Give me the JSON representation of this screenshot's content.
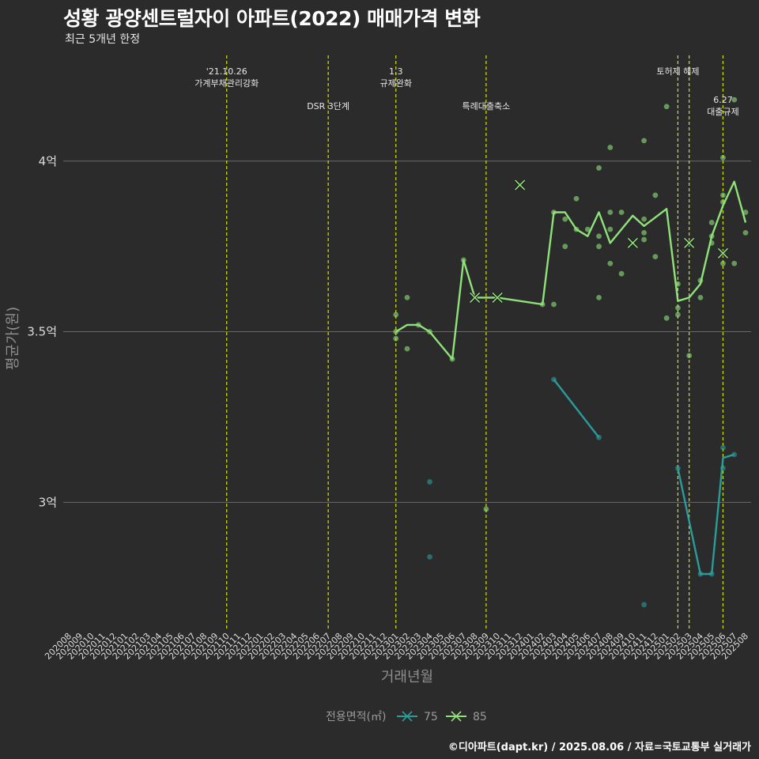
{
  "title": "성황 광양센트럴자이 아파트(2022) 매매가격 변화",
  "subtitle": "최근 5개년 한정",
  "caption": "©디아파트(dapt.kr) / 2025.08.06 / 자료=국토교통부 실거래가",
  "legend": {
    "title": "전용면적(㎡)",
    "items": [
      {
        "label": "75",
        "color": "#2a9d9a"
      },
      {
        "label": "85",
        "color": "#8fe27a"
      }
    ]
  },
  "chart_data": {
    "type": "line",
    "xlabel": "거래년월",
    "ylabel": "평균가(원)",
    "ylim": [
      2.63,
      4.31
    ],
    "yticks": [
      {
        "value": 3.0,
        "label": "3억"
      },
      {
        "value": 3.5,
        "label": "3.5억"
      },
      {
        "value": 4.0,
        "label": "4억"
      }
    ],
    "grid": true,
    "legend_position": "bottom",
    "categories": [
      "202008",
      "202009",
      "202010",
      "202011",
      "202012",
      "202101",
      "202102",
      "202103",
      "202104",
      "202105",
      "202106",
      "202107",
      "202108",
      "202109",
      "202110",
      "202111",
      "202112",
      "202201",
      "202202",
      "202203",
      "202204",
      "202205",
      "202206",
      "202207",
      "202208",
      "202209",
      "202210",
      "202211",
      "202212",
      "202301",
      "202302",
      "202303",
      "202304",
      "202305",
      "202306",
      "202307",
      "202308",
      "202309",
      "202310",
      "202311",
      "202312",
      "202401",
      "202402",
      "202403",
      "202404",
      "202405",
      "202406",
      "202407",
      "202408",
      "202409",
      "202410",
      "202411",
      "202412",
      "202501",
      "202502",
      "202503",
      "202504",
      "202505",
      "202506",
      "202507",
      "202508"
    ],
    "events": [
      {
        "x": "202110",
        "label": "'21.10.26\n가계부채관리강화",
        "row": 0
      },
      {
        "x": "202207",
        "label": "DSR 3단계",
        "row": 1
      },
      {
        "x": "202301",
        "label": "1.3\n규제완화",
        "row": 0
      },
      {
        "x": "202309",
        "label": "특례대출축소",
        "row": 1
      },
      {
        "x": "202502",
        "label": "토허제 해제",
        "row": 0
      },
      {
        "x": "202503",
        "label": "",
        "row": 0
      },
      {
        "x": "202506",
        "label": "6.27\n대출규제",
        "row": 1
      }
    ],
    "series": [
      {
        "name": "75",
        "color": "#2a9d9a",
        "line": [
          [
            "202403",
            3.36
          ],
          [
            "202407",
            3.19
          ],
          null,
          [
            "202502",
            3.1
          ],
          [
            "202504",
            2.79
          ],
          [
            "202505",
            2.79
          ],
          [
            "202506",
            3.13
          ],
          [
            "202507",
            3.14
          ]
        ],
        "points": [
          [
            "202304",
            3.06
          ],
          [
            "202304",
            2.84
          ],
          [
            "202403",
            3.36
          ],
          [
            "202407",
            3.19
          ],
          [
            "202411",
            2.7
          ],
          [
            "202502",
            3.1
          ],
          [
            "202504",
            2.79
          ],
          [
            "202505",
            2.79
          ],
          [
            "202506",
            3.16
          ],
          [
            "202506",
            3.1
          ],
          [
            "202507",
            3.14
          ]
        ],
        "crosses": []
      },
      {
        "name": "85",
        "color": "#8fe27a",
        "line": [
          [
            "202301",
            3.5
          ],
          [
            "202302",
            3.52
          ],
          [
            "202303",
            3.52
          ],
          [
            "202304",
            3.5
          ],
          [
            "202306",
            3.42
          ],
          [
            "202307",
            3.71
          ],
          [
            "202308",
            3.6
          ],
          [
            "202310",
            3.6
          ],
          [
            "202402",
            3.58
          ],
          [
            "202403",
            3.85
          ],
          [
            "202404",
            3.85
          ],
          [
            "202405",
            3.8
          ],
          [
            "202406",
            3.78
          ],
          [
            "202407",
            3.85
          ],
          [
            "202408",
            3.76
          ],
          [
            "202410",
            3.84
          ],
          [
            "202411",
            3.81
          ],
          [
            "202501",
            3.86
          ],
          [
            "202502",
            3.59
          ],
          [
            "202503",
            3.6
          ],
          [
            "202504",
            3.64
          ],
          [
            "202505",
            3.78
          ],
          [
            "202506",
            3.87
          ],
          [
            "202507",
            3.94
          ],
          [
            "202508",
            3.82
          ]
        ],
        "points": [
          [
            "202301",
            3.55
          ],
          [
            "202301",
            3.5
          ],
          [
            "202301",
            3.48
          ],
          [
            "202302",
            3.6
          ],
          [
            "202302",
            3.45
          ],
          [
            "202303",
            3.52
          ],
          [
            "202304",
            3.5
          ],
          [
            "202306",
            3.42
          ],
          [
            "202307",
            3.71
          ],
          [
            "202309",
            2.98
          ],
          [
            "202402",
            3.58
          ],
          [
            "202403",
            3.85
          ],
          [
            "202403",
            3.58
          ],
          [
            "202404",
            3.83
          ],
          [
            "202404",
            3.75
          ],
          [
            "202405",
            3.89
          ],
          [
            "202405",
            3.8
          ],
          [
            "202406",
            3.8
          ],
          [
            "202407",
            3.98
          ],
          [
            "202407",
            3.78
          ],
          [
            "202407",
            3.75
          ],
          [
            "202407",
            3.6
          ],
          [
            "202408",
            4.04
          ],
          [
            "202408",
            3.85
          ],
          [
            "202408",
            3.8
          ],
          [
            "202408",
            3.7
          ],
          [
            "202409",
            3.85
          ],
          [
            "202409",
            3.67
          ],
          [
            "202411",
            4.06
          ],
          [
            "202411",
            3.83
          ],
          [
            "202411",
            3.79
          ],
          [
            "202411",
            3.77
          ],
          [
            "202412",
            3.9
          ],
          [
            "202412",
            3.72
          ],
          [
            "202501",
            4.16
          ],
          [
            "202501",
            3.54
          ],
          [
            "202502",
            3.64
          ],
          [
            "202502",
            3.57
          ],
          [
            "202502",
            3.55
          ],
          [
            "202503",
            3.43
          ],
          [
            "202504",
            3.65
          ],
          [
            "202504",
            3.6
          ],
          [
            "202505",
            3.82
          ],
          [
            "202505",
            3.78
          ],
          [
            "202505",
            3.76
          ],
          [
            "202506",
            4.01
          ],
          [
            "202506",
            3.9
          ],
          [
            "202506",
            3.88
          ],
          [
            "202506",
            3.73
          ],
          [
            "202506",
            3.7
          ],
          [
            "202507",
            4.18
          ],
          [
            "202507",
            3.7
          ],
          [
            "202508",
            3.85
          ],
          [
            "202508",
            3.79
          ]
        ],
        "crosses": [
          [
            "202308",
            3.6
          ],
          [
            "202310",
            3.6
          ],
          [
            "202312",
            3.93
          ],
          [
            "202410",
            3.76
          ],
          [
            "202503",
            3.76
          ],
          [
            "202506",
            3.73
          ]
        ]
      }
    ]
  }
}
